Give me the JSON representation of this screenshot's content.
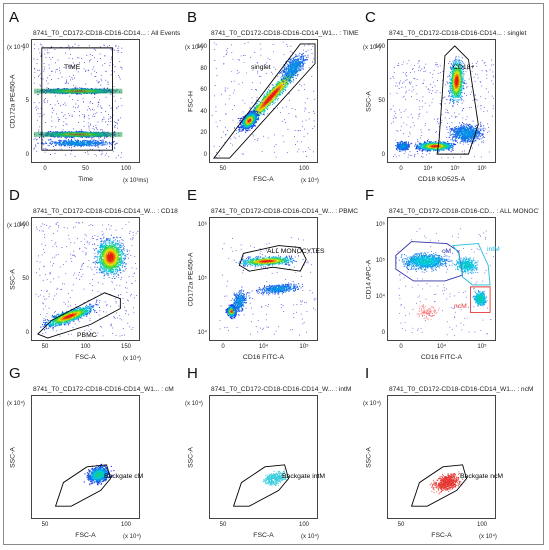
{
  "chart_data": [
    {
      "panel": "A",
      "type": "scatter",
      "title": "8741_T0_CD172-CD18-CD16-CD14... : All Events",
      "xlabel": "Time",
      "ylabel": "CD172a PE450-A",
      "xunit": "(x 10³ms)",
      "yunit": "(x 10⁴)",
      "xticks": [
        "0",
        "50",
        "100"
      ],
      "yticks": [
        "0",
        "5",
        "10"
      ],
      "gates": [
        {
          "name": "TIME",
          "color": "#000000"
        }
      ],
      "populations": [
        {
          "x_range": [
            0,
            110
          ],
          "y_center": 5.5,
          "note": "upper band"
        },
        {
          "x_range": [
            0,
            110
          ],
          "y_center": 0.3,
          "note": "lower band"
        }
      ]
    },
    {
      "panel": "B",
      "type": "scatter",
      "title": "8741_T0_CD172-CD18-CD16-CD14_W1... : TIME",
      "xlabel": "FSC-A",
      "ylabel": "FSC-H",
      "xunit": "(x 10⁴)",
      "yunit": "(x 10⁴)",
      "xticks": [
        "50",
        "100"
      ],
      "yticks": [
        "0",
        "20",
        "40",
        "60",
        "80",
        "100"
      ],
      "gates": [
        {
          "name": "singlet",
          "color": "#000000"
        }
      ]
    },
    {
      "panel": "C",
      "type": "scatter",
      "title": "8741_T0_CD172-CD18-CD16-CD14... : singlet",
      "xlabel": "CD18 KO525-A",
      "ylabel": "SSC-A",
      "xunit": "",
      "yunit": "(x 10⁴)",
      "xticks": [
        "0",
        "10⁴",
        "10⁵",
        "10⁶"
      ],
      "yticks": [
        "0",
        "50",
        "100"
      ],
      "gates": [
        {
          "name": "CD18+",
          "color": "#000000"
        }
      ]
    },
    {
      "panel": "D",
      "type": "scatter",
      "title": "8741_T0_CD172-CD18-CD16-CD14_W... : CD18",
      "xlabel": "FSC-A",
      "ylabel": "SSC-A",
      "xunit": "(x 10⁴)",
      "yunit": "(x 10⁴)",
      "xticks": [
        "50",
        "100",
        "150"
      ],
      "yticks": [
        "0",
        "50",
        "100"
      ],
      "gates": [
        {
          "name": "PBMC",
          "color": "#000000"
        }
      ]
    },
    {
      "panel": "E",
      "type": "scatter",
      "title": "8741_T0_CD172-CD18-CD16-CD14_W... : PBMC",
      "xlabel": "CD16 FITC-A",
      "ylabel": "CD172a PE450-A",
      "xunit": "",
      "yunit": "",
      "xticks": [
        "0",
        "10⁴",
        "10⁵"
      ],
      "yticks": [
        "10⁴",
        "10⁵",
        "10⁶"
      ],
      "gates": [
        {
          "name": "ALL MONOCYTES",
          "color": "#000000"
        }
      ]
    },
    {
      "panel": "F",
      "type": "scatter",
      "title": "8741_T0_CD172-CD18-CD16-CD... : ALL MONOCYTES",
      "xlabel": "CD16 FITC-A",
      "ylabel": "CD14 APC-A",
      "xunit": "",
      "yunit": "",
      "xticks": [
        "0",
        "10⁴",
        "10⁵"
      ],
      "yticks": [
        "0",
        "10⁴",
        "10⁵",
        "10⁶"
      ],
      "gates": [
        {
          "name": "cM",
          "color": "#3333aa"
        },
        {
          "name": "intM",
          "color": "#22bbdd"
        },
        {
          "name": "ncM",
          "color": "#e53935"
        }
      ]
    },
    {
      "panel": "G",
      "type": "scatter",
      "title": "8741_T0_CD172-CD18-CD16-CD14_W1... : cM",
      "xlabel": "FSC-A",
      "ylabel": "SSC-A",
      "xunit": "(x 10⁴)",
      "yunit": "(x 10⁴)",
      "xticks": [
        "50",
        "100"
      ],
      "yticks": [],
      "gates": [
        {
          "name": "Backgate cM",
          "color": "#000000"
        }
      ],
      "dot_color": "#2222aa"
    },
    {
      "panel": "H",
      "type": "scatter",
      "title": "8741_T0_CD172-CD18-CD16-CD14_W... : intM",
      "xlabel": "FSC-A",
      "ylabel": "SSC-A",
      "xunit": "(x 10⁴)",
      "yunit": "(x 10⁴)",
      "xticks": [
        "50",
        "100"
      ],
      "yticks": [],
      "gates": [
        {
          "name": "Backgate intM",
          "color": "#000000"
        }
      ],
      "dot_color": "#33ccdd"
    },
    {
      "panel": "I",
      "type": "scatter",
      "title": "8741_T0_CD172-CD18-CD16-CD14_W1... : ncM",
      "xlabel": "FSC-A",
      "ylabel": "SSC-A",
      "xunit": "(x 10⁴)",
      "yunit": "(x 10⁴)",
      "xticks": [
        "50",
        "100"
      ],
      "yticks": [],
      "gates": [
        {
          "name": "Backgate ncM",
          "color": "#000000"
        }
      ],
      "dot_color": "#e53935"
    }
  ]
}
